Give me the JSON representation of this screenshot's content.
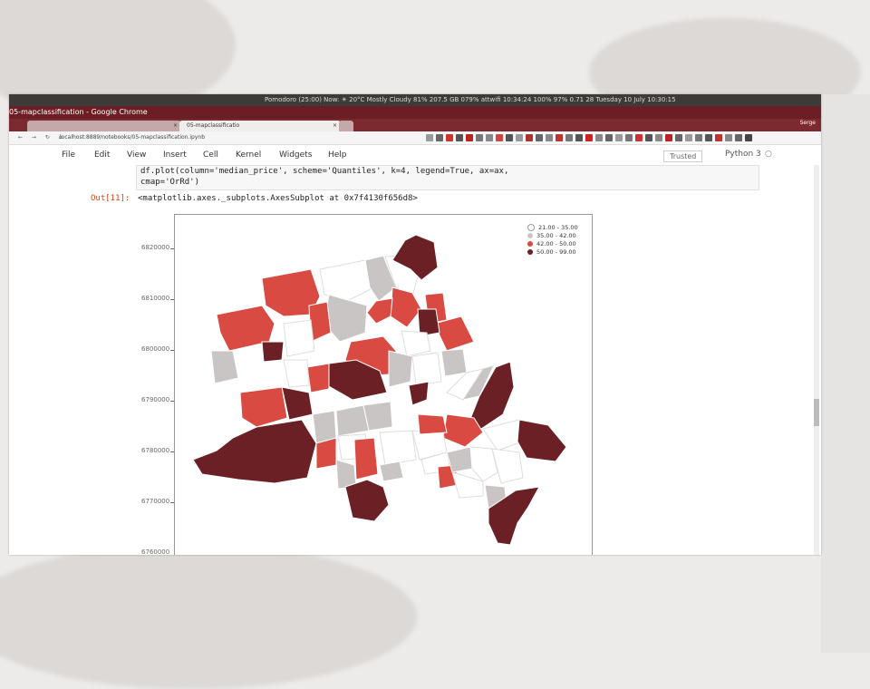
{
  "system_panel": {
    "status_text": "Pomodoro (25:00)      Now: ☀ 20°C Mostly Cloudy      81%   207.5 GB   079%   attwifi   10:34:24   100%   97%   0.71   28   Tuesday 10 July   10:30:15"
  },
  "window": {
    "title": "05-mapclassification - Google Chrome",
    "user": "Serge"
  },
  "browser": {
    "tabs": [
      {
        "label": ""
      },
      {
        "label": "05-mapclassificatio"
      },
      {
        "label": ""
      }
    ],
    "url": "localhost:8889/notebooks/05-mapclassification.ipynb"
  },
  "menu": {
    "items": [
      "File",
      "Edit",
      "View",
      "Insert",
      "Cell",
      "Kernel",
      "Widgets",
      "Help"
    ],
    "trusted": "Trusted",
    "kernel": "Python 3"
  },
  "cell": {
    "code_line1_pre": "df.plot(column='median_price', scheme='Quantiles', k=4, legend=True, ax=ax,",
    "code_line2": "        cmap='OrRd')",
    "out_prompt": "Out[11]:",
    "out_text": "<matplotlib.axes._subplots.AxesSubplot at 0x7f4130f656d8>"
  },
  "plot": {
    "yticks": [
      "6820000",
      "6810000",
      "6800000",
      "6790000",
      "6780000",
      "6770000",
      "6760000"
    ],
    "legend": [
      {
        "label": "21.00 - 35.00",
        "color": "#ffffff"
      },
      {
        "label": "35.00 - 42.00",
        "color": "#c9c5c5"
      },
      {
        "label": "42.00 - 50.00",
        "color": "#d94a42"
      },
      {
        "label": "50.00 - 99.00",
        "color": "#6a2024"
      }
    ]
  }
}
